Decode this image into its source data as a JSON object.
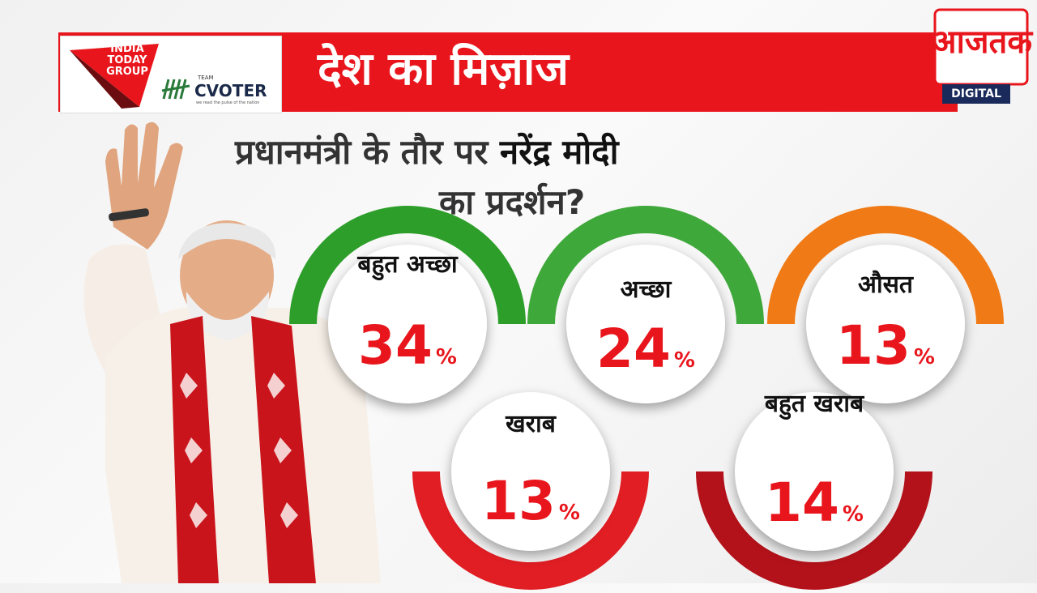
{
  "header": {
    "headline": "देश का मिज़ाज",
    "logo_left_text": "INDIA TODAY GROUP",
    "cvoter_team": "TEAM",
    "cvoter_name": "CVOTER",
    "cvoter_tagline": "we read the pulse of the nation",
    "channel_logo": "आजतक",
    "channel_badge": "DIGITAL"
  },
  "question": {
    "line1_prefix": "प्रधानमंत्री के तौर पर ",
    "line1_name": "नरेंद्र मोदी",
    "line2": "का प्रदर्शन?"
  },
  "colors": {
    "banner_red": "#e8161c",
    "green": "#2e9e2a",
    "orange": "#f07a16",
    "dark_red": "#b3121a",
    "navy": "#1a2b5b"
  },
  "chart_data": {
    "type": "bar",
    "categories": [
      "बहुत अच्छा",
      "अच्छा",
      "औसत",
      "खराब",
      "बहुत खराब"
    ],
    "values": [
      34,
      24,
      13,
      13,
      14
    ],
    "unit": "%"
  },
  "results": [
    {
      "label": "बहुत अच्छा",
      "value": "34",
      "unit": "%",
      "color": "#2e9e2a"
    },
    {
      "label": "अच्छा",
      "value": "24",
      "unit": "%",
      "color": "#3fa83a"
    },
    {
      "label": "औसत",
      "value": "13",
      "unit": "%",
      "color": "#f07a16"
    },
    {
      "label": "खराब",
      "value": "13",
      "unit": "%",
      "color": "#e01e24"
    },
    {
      "label": "बहुत खराब",
      "value": "14",
      "unit": "%",
      "color": "#b3121a"
    }
  ]
}
